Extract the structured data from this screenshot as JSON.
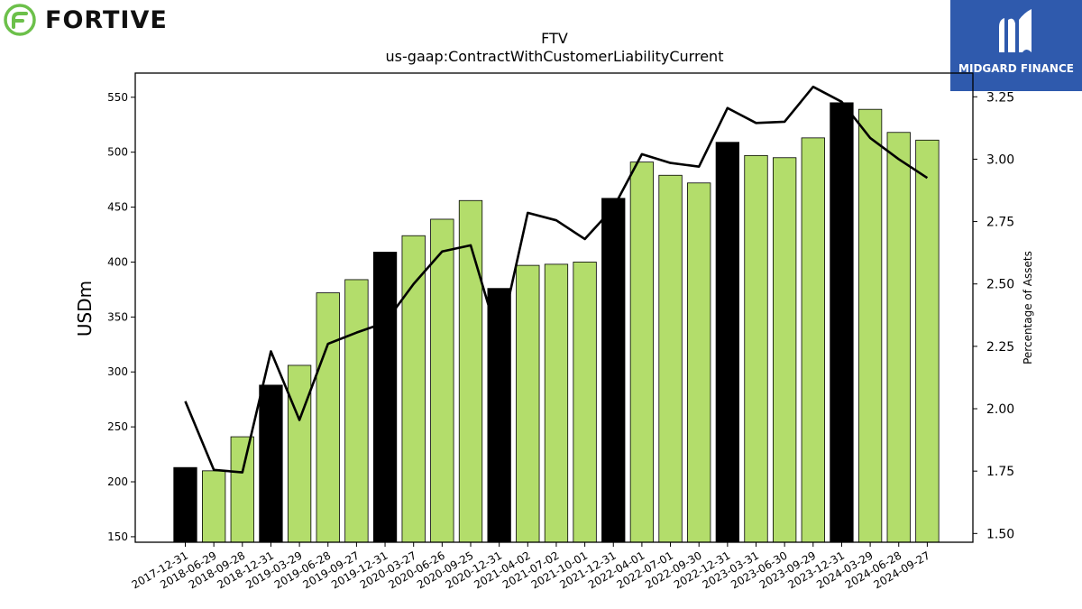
{
  "branding": {
    "left_logo": "FORTIVE",
    "right_logo": "MIDGARD FINANCE",
    "left_icon": "fortive-leaf-icon",
    "right_icon": "midgard-m-icon"
  },
  "colors": {
    "bar_green": "#b3dd6b",
    "bar_black": "#000000",
    "line": "#000000",
    "fortive_green": "#6cc04a",
    "midgard_blue": "#2f5aad"
  },
  "chart_data": {
    "type": "bar",
    "title": "FTV",
    "subtitle": "us-gaap:ContractWithCustomerLiabilityCurrent",
    "ylabel": "USDm",
    "y2label": "Percentage of Assets",
    "ylim": [
      145,
      572
    ],
    "y2lim": [
      1.465,
      3.345
    ],
    "yticks": [
      150,
      200,
      250,
      300,
      350,
      400,
      450,
      500,
      550
    ],
    "y2ticks": [
      "1.50",
      "1.75",
      "2.00",
      "2.25",
      "2.50",
      "2.75",
      "3.00",
      "3.25"
    ],
    "categories": [
      "2017-12-31",
      "2018-06-29",
      "2018-09-28",
      "2018-12-31",
      "2019-03-29",
      "2019-06-28",
      "2019-09-27",
      "2019-12-31",
      "2020-03-27",
      "2020-06-26",
      "2020-09-25",
      "2020-12-31",
      "2021-04-02",
      "2021-07-02",
      "2021-10-01",
      "2021-12-31",
      "2022-04-01",
      "2022-07-01",
      "2022-09-30",
      "2022-12-31",
      "2023-03-31",
      "2023-06-30",
      "2023-09-29",
      "2023-12-31",
      "2024-03-29",
      "2024-06-28",
      "2024-09-27"
    ],
    "series": [
      {
        "type": "bar",
        "values": [
          213,
          210,
          241,
          288,
          306,
          372,
          384,
          409,
          424,
          439,
          456,
          376,
          397,
          398,
          400,
          458,
          491,
          479,
          472,
          509,
          497,
          495,
          513,
          545,
          539,
          518,
          511
        ],
        "year_end": [
          true,
          false,
          false,
          true,
          false,
          false,
          false,
          true,
          false,
          false,
          false,
          true,
          false,
          false,
          false,
          true,
          false,
          false,
          false,
          true,
          false,
          false,
          false,
          true,
          false,
          false,
          false
        ]
      },
      {
        "type": "line",
        "axis": "right",
        "values": [
          2.03,
          1.755,
          1.745,
          2.23,
          1.955,
          2.26,
          2.305,
          2.345,
          2.5,
          2.63,
          2.655,
          2.27,
          2.785,
          2.755,
          2.68,
          2.805,
          3.02,
          2.985,
          2.97,
          3.205,
          3.145,
          3.15,
          3.29,
          3.23,
          3.085,
          3.0,
          2.925
        ]
      }
    ],
    "grid": false
  }
}
